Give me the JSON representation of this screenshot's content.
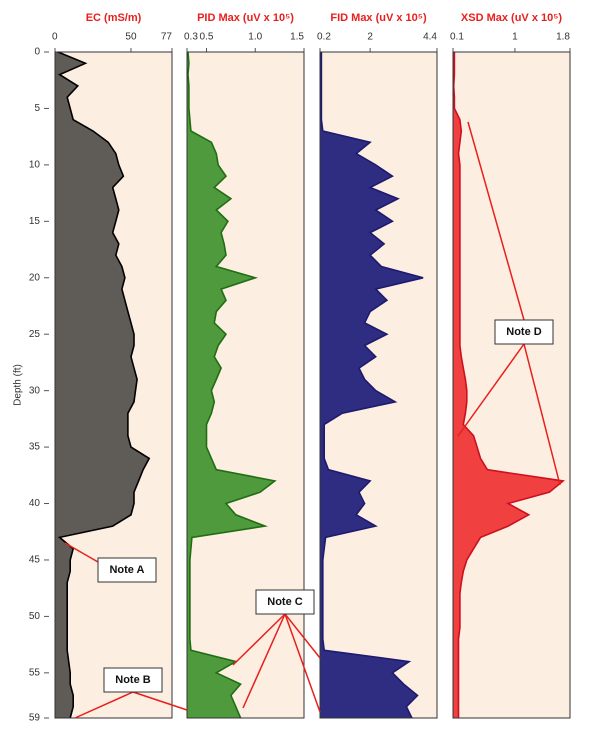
{
  "chart_data": {
    "type": "log",
    "ylabel": "Depth (ft)",
    "ylim": [
      0,
      59
    ],
    "yticks": [
      0,
      5,
      10,
      15,
      20,
      25,
      30,
      35,
      40,
      45,
      50,
      55,
      59
    ],
    "depth": [
      0,
      1,
      2,
      3,
      4,
      5,
      6,
      7,
      8,
      9,
      10,
      11,
      12,
      13,
      14,
      15,
      16,
      17,
      18,
      19,
      20,
      21,
      22,
      23,
      24,
      25,
      26,
      27,
      28,
      29,
      30,
      31,
      32,
      33,
      34,
      35,
      36,
      37,
      38,
      39,
      40,
      41,
      42,
      43,
      44,
      45,
      46,
      47,
      48,
      49,
      50,
      51,
      52,
      53,
      54,
      55,
      56,
      57,
      58,
      59
    ],
    "tracks": [
      {
        "title": "EC (mS/m)",
        "fill": "#5f5b57",
        "color": "#000000",
        "xlim": [
          0,
          77
        ],
        "xticks": [
          0,
          50,
          77
        ],
        "values": [
          2,
          20,
          3,
          15,
          8,
          10,
          12,
          25,
          35,
          40,
          42,
          45,
          38,
          40,
          42,
          40,
          38,
          42,
          40,
          44,
          46,
          44,
          46,
          48,
          50,
          52,
          52,
          50,
          52,
          54,
          53,
          52,
          48,
          48,
          48,
          50,
          62,
          58,
          55,
          52,
          52,
          50,
          38,
          3,
          12,
          10,
          10,
          8,
          8,
          8,
          8,
          8,
          8,
          8,
          9,
          10,
          10,
          12,
          12,
          10
        ]
      },
      {
        "title": "PID Max (uV x 10⁵)",
        "fill": "#4f9a3c",
        "color": "#1f6e14",
        "xlim": [
          0.3,
          1.5
        ],
        "xticks": [
          0.3,
          0.5,
          {
            "value": 1,
            "label": "1.0"
          },
          1.5
        ],
        "values": [
          0.31,
          0.32,
          0.31,
          0.32,
          0.32,
          0.32,
          0.33,
          0.34,
          0.55,
          0.6,
          0.62,
          0.7,
          0.58,
          0.75,
          0.6,
          0.72,
          0.65,
          0.68,
          0.7,
          0.6,
          1.0,
          0.65,
          0.7,
          0.6,
          0.58,
          0.7,
          0.62,
          0.58,
          0.65,
          0.6,
          0.55,
          0.58,
          0.55,
          0.5,
          0.5,
          0.5,
          0.55,
          0.6,
          1.2,
          1.05,
          0.7,
          0.8,
          1.1,
          0.35,
          0.34,
          0.33,
          0.33,
          0.33,
          0.33,
          0.33,
          0.33,
          0.33,
          0.33,
          0.34,
          0.8,
          0.6,
          0.85,
          0.75,
          0.8,
          0.85
        ]
      },
      {
        "title": "FID Max (uV x 10⁵)",
        "fill": "#2e2d82",
        "color": "#1e1a6e",
        "xlim": [
          0.2,
          4.4
        ],
        "xticks": [
          0.2,
          2,
          4.4
        ],
        "values": [
          0.25,
          0.25,
          0.25,
          0.25,
          0.25,
          0.25,
          0.25,
          0.3,
          2,
          1.5,
          2.2,
          2.8,
          2,
          3,
          2.2,
          2.8,
          2,
          2.5,
          2,
          2.4,
          3.9,
          2.2,
          2.6,
          2,
          1.8,
          2.6,
          1.8,
          2.2,
          1.6,
          1.8,
          2.2,
          2.9,
          1,
          0.35,
          0.35,
          0.35,
          0.35,
          0.5,
          2,
          1.6,
          1.8,
          1.5,
          2.2,
          0.4,
          0.35,
          0.3,
          0.3,
          0.3,
          0.3,
          0.3,
          0.3,
          0.3,
          0.3,
          0.35,
          3.4,
          2.8,
          3.2,
          3.7,
          3.3,
          3.5
        ]
      },
      {
        "title": "XSD Max (uV x 10⁵)",
        "fill": "#f04040",
        "color": "#cc1020",
        "xlim": [
          0.1,
          1.8
        ],
        "xticks": [
          0.1,
          1,
          1.8
        ],
        "values": [
          0.12,
          0.12,
          0.12,
          0.11,
          0.12,
          0.12,
          0.2,
          0.22,
          0.2,
          0.18,
          0.2,
          0.2,
          0.2,
          0.2,
          0.2,
          0.2,
          0.2,
          0.2,
          0.2,
          0.2,
          0.2,
          0.2,
          0.2,
          0.2,
          0.2,
          0.2,
          0.2,
          0.22,
          0.25,
          0.28,
          0.3,
          0.3,
          0.28,
          0.25,
          0.4,
          0.45,
          0.5,
          0.6,
          1.7,
          1.5,
          0.9,
          1.2,
          0.9,
          0.5,
          0.4,
          0.3,
          0.25,
          0.22,
          0.2,
          0.2,
          0.2,
          0.2,
          0.18,
          0.18,
          0.18,
          0.18,
          0.18,
          0.18,
          0.18,
          0.18
        ]
      }
    ],
    "annotations": [
      "Note A",
      "Note B",
      "Note C",
      "Note D"
    ]
  }
}
